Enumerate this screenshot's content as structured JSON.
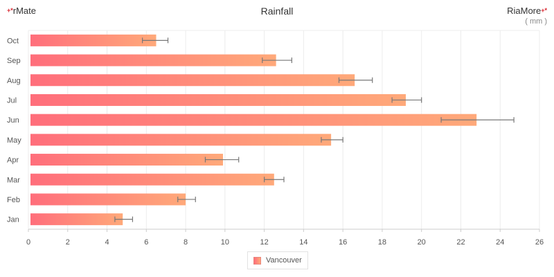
{
  "header": {
    "brand_left": "rMate",
    "brand_right": "RiaMore",
    "brand_mark": "+*",
    "title": "Rainfall",
    "unit": "( mm )"
  },
  "legend": {
    "label": "Vancouver"
  },
  "chart_data": {
    "type": "bar",
    "orientation": "horizontal",
    "title": "Rainfall",
    "unit": "( mm )",
    "categories": [
      "Jan",
      "Feb",
      "Mar",
      "Apr",
      "May",
      "Jun",
      "Jul",
      "Aug",
      "Sep",
      "Oct"
    ],
    "series": [
      {
        "name": "Vancouver",
        "values": [
          4.8,
          8.0,
          12.5,
          9.9,
          15.4,
          22.8,
          19.2,
          16.6,
          12.6,
          6.5
        ],
        "error_low": [
          4.4,
          7.6,
          12.0,
          9.0,
          14.9,
          21.0,
          18.5,
          15.8,
          11.9,
          5.8
        ],
        "error_high": [
          5.3,
          8.5,
          13.0,
          10.7,
          16.0,
          24.7,
          20.0,
          17.5,
          13.4,
          7.1
        ]
      }
    ],
    "xlim": [
      0,
      26
    ],
    "xticks": [
      0,
      2,
      4,
      6,
      8,
      10,
      12,
      14,
      16,
      18,
      20,
      22,
      24,
      26
    ],
    "grid": true,
    "legend_position": "bottom-center",
    "colors": {
      "bar_start": "#ff6e7b",
      "bar_end": "#ffa97a",
      "error_bar": "#777777",
      "grid": "#ececec",
      "axis": "#cccccc"
    }
  }
}
